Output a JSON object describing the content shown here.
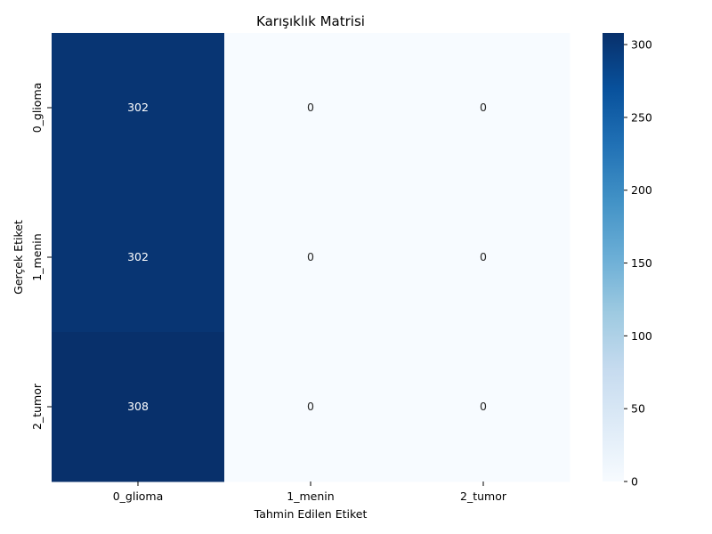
{
  "chart_data": {
    "type": "heatmap",
    "title": "Karışıklık Matrisi",
    "xlabel": "Tahmin Edilen Etiket",
    "ylabel": "Gerçek Etiket",
    "x_categories": [
      "0_glioma",
      "1_menin",
      "2_tumor"
    ],
    "y_categories": [
      "0_glioma",
      "1_menin",
      "2_tumor"
    ],
    "values": [
      [
        302,
        0,
        0
      ],
      [
        302,
        0,
        0
      ],
      [
        308,
        0,
        0
      ]
    ],
    "colorbar": {
      "range": [
        0,
        308
      ],
      "ticks": [
        0,
        50,
        100,
        150,
        200,
        250,
        300
      ]
    },
    "colormap": [
      "#f7fbff",
      "#deebf7",
      "#c6dbef",
      "#9ecae1",
      "#6baed6",
      "#4292c6",
      "#2171b5",
      "#08519c",
      "#08306b"
    ],
    "text_colors": {
      "light_cell": "#262626",
      "dark_cell": "#ffffff"
    }
  }
}
